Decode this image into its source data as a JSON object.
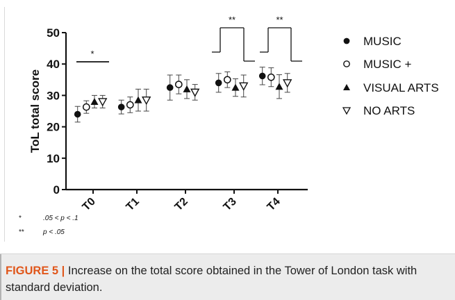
{
  "chart_data": {
    "type": "scatter",
    "ylabel": "ToL total score",
    "xlabel": "",
    "categories": [
      "T0",
      "T1",
      "T2",
      "T3",
      "T4"
    ],
    "ylim": [
      0,
      50
    ],
    "yticks": [
      0,
      10,
      20,
      30,
      40,
      50
    ],
    "series": [
      {
        "name": "MUSIC",
        "marker": "filled-circle",
        "values": [
          24,
          26.3,
          32.5,
          34,
          36.2
        ],
        "sd": [
          2.5,
          2.2,
          4,
          3,
          2.8
        ]
      },
      {
        "name": "MUSIC +",
        "marker": "open-circle",
        "values": [
          26.3,
          27,
          33.5,
          35,
          35.8
        ],
        "sd": [
          2,
          2.5,
          3,
          2.5,
          3
        ]
      },
      {
        "name": "VISUAL ARTS",
        "marker": "filled-triangle",
        "values": [
          28,
          28.5,
          32,
          32.5,
          32.8
        ],
        "sd": [
          2,
          3.5,
          3,
          2.8,
          3.8
        ]
      },
      {
        "name": "NO ARTS",
        "marker": "open-triangle-down",
        "values": [
          28,
          28.5,
          31,
          33,
          34
        ],
        "sd": [
          2,
          3.5,
          2.5,
          3.5,
          3
        ]
      }
    ],
    "significance": [
      {
        "category": "T0",
        "label": "*"
      },
      {
        "category": "T3",
        "label": "**"
      },
      {
        "category": "T4",
        "label": "**"
      }
    ],
    "notes": [
      {
        "symbol": "*",
        "text": ".05 < p < .1"
      },
      {
        "symbol": "**",
        "text": "p < .05"
      }
    ],
    "legend_position": "right"
  },
  "caption": {
    "label": "FIGURE 5 |",
    "text": " Increase on the total score obtained in the Tower of London task with standard deviation."
  }
}
